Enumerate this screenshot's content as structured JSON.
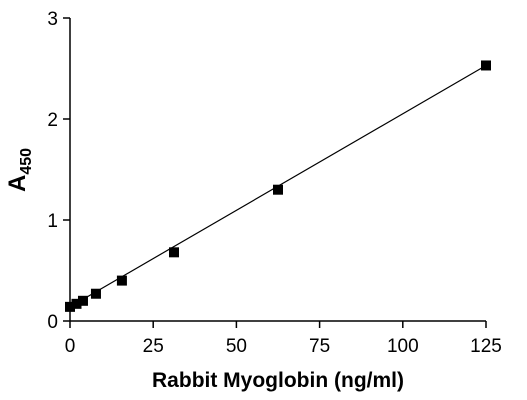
{
  "chart_data": {
    "type": "scatter",
    "title": "",
    "xlabel": "Rabbit Myoglobin (ng/ml)",
    "ylabel": {
      "main": "A",
      "subscript": "450"
    },
    "xlim": [
      0,
      125
    ],
    "ylim": [
      0,
      3
    ],
    "xticks": [
      0,
      25,
      50,
      75,
      100,
      125
    ],
    "yticks": [
      0,
      1,
      2,
      3
    ],
    "grid": false,
    "legend": "none",
    "marker": "square",
    "marker_color": "#000000",
    "line_color": "#000000",
    "points": [
      {
        "x": 0,
        "y": 0.14
      },
      {
        "x": 1.95,
        "y": 0.17
      },
      {
        "x": 3.9,
        "y": 0.2
      },
      {
        "x": 7.8,
        "y": 0.27
      },
      {
        "x": 15.6,
        "y": 0.4
      },
      {
        "x": 31.25,
        "y": 0.68
      },
      {
        "x": 62.5,
        "y": 1.3
      },
      {
        "x": 125,
        "y": 2.53
      }
    ],
    "fit_line": {
      "x": [
        0,
        125
      ],
      "y": [
        0.14,
        2.53
      ]
    }
  }
}
